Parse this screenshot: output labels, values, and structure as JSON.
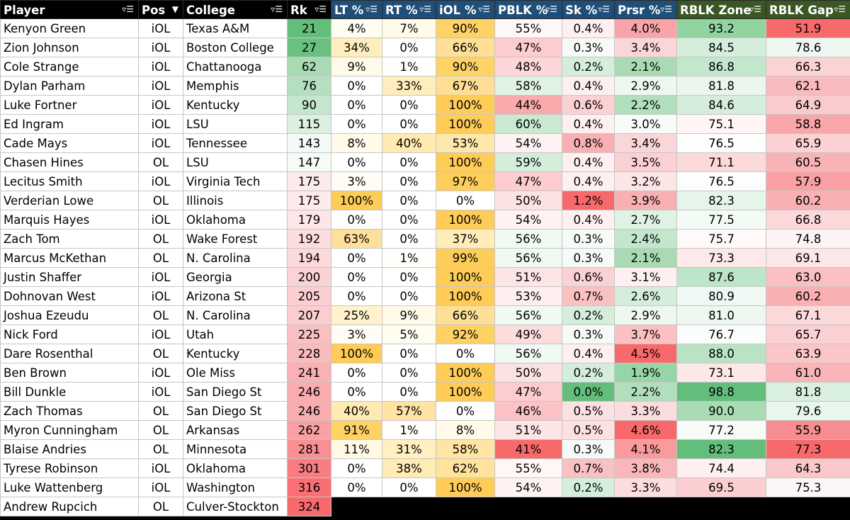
{
  "columns": [
    {
      "key": "player",
      "label": "Player",
      "width": 195,
      "align": "l",
      "bg": "#000000",
      "filter": "▿☰"
    },
    {
      "key": "pos",
      "label": "Pos",
      "width": 63,
      "align": "c",
      "bg": "#000000",
      "filter": "▼"
    },
    {
      "key": "college",
      "label": "College",
      "width": 147,
      "align": "l",
      "bg": "#000000",
      "filter": "▿☰"
    },
    {
      "key": "rk",
      "label": "Rk",
      "width": 62,
      "align": "c",
      "bg": "#000000",
      "filter": "▿☰"
    },
    {
      "key": "lt",
      "label": "LT %",
      "width": 72,
      "align": "c",
      "bg": "#1f4e78",
      "filter": "▿☰"
    },
    {
      "key": "rt",
      "label": "RT %",
      "width": 76,
      "align": "c",
      "bg": "#1f4e78",
      "filter": "▿☰"
    },
    {
      "key": "iol",
      "label": "iOL %",
      "width": 83,
      "align": "c",
      "bg": "#1f4e78",
      "filter": "▿☰"
    },
    {
      "key": "pblk",
      "label": "PBLK %",
      "width": 95,
      "align": "c",
      "bg": "#1f4e78",
      "filter": "▿☰"
    },
    {
      "key": "sk",
      "label": "Sk %",
      "width": 74,
      "align": "c",
      "bg": "#1f4e78",
      "filter": "▿☰"
    },
    {
      "key": "prsr",
      "label": "Prsr %",
      "width": 88,
      "align": "c",
      "bg": "#1f4e78",
      "filter": "▿☰"
    },
    {
      "key": "zone",
      "label": "RBLK Zone",
      "width": 126,
      "align": "c",
      "bg": "#385723",
      "filter": "▿☰"
    },
    {
      "key": "gap",
      "label": "RBLK Gap",
      "width": 119,
      "align": "c",
      "bg": "#385723",
      "filter": "▿☰"
    }
  ],
  "rows": [
    {
      "player": "Kenyon Green",
      "pos": "iOL",
      "college": "Texas A&M",
      "rk": "21",
      "lt": "4%",
      "rt": "7%",
      "iol": "90%",
      "pblk": "55%",
      "sk": "0.4%",
      "prsr": "4.0%",
      "zone": "93.2",
      "gap": "51.9",
      "colors": {
        "rk": "#63be7b",
        "lt": "#fffcf2",
        "rt": "#fffaea",
        "iol": "#fed366",
        "pblk": "#fff6f6",
        "sk": "#fef0f0",
        "prsr": "#f8a4a8",
        "zone": "#91d3a1",
        "gap": "#f8696b"
      }
    },
    {
      "player": "Zion Johnson",
      "pos": "iOL",
      "college": "Boston College",
      "rk": "27",
      "lt": "34%",
      "rt": "0%",
      "iol": "66%",
      "pblk": "47%",
      "sk": "0.3%",
      "prsr": "3.4%",
      "zone": "84.5",
      "gap": "78.6",
      "colors": {
        "rk": "#6ac17f",
        "lt": "#ffeebd",
        "rt": "#ffffff",
        "iol": "#ffdf95",
        "pblk": "#fccccf",
        "sk": "#f7fbf8",
        "prsr": "#fbd6d8",
        "zone": "#d5eedb",
        "gap": "#eef8f1"
      }
    },
    {
      "player": "Cole Strange",
      "pos": "iOL",
      "college": "Chattanooga",
      "rk": "62",
      "lt": "9%",
      "rt": "1%",
      "iol": "90%",
      "pblk": "48%",
      "sk": "0.2%",
      "prsr": "2.1%",
      "zone": "86.8",
      "gap": "66.3",
      "colors": {
        "rk": "#a8dbb3",
        "lt": "#fffae8",
        "rt": "#fffefb",
        "iol": "#fed366",
        "pblk": "#fcd6d8",
        "sk": "#d4eedb",
        "prsr": "#a8dbb3",
        "zone": "#c3e7cc",
        "gap": "#fbd3d5"
      }
    },
    {
      "player": "Dylan Parham",
      "pos": "iOL",
      "college": "Memphis",
      "rk": "76",
      "lt": "0%",
      "rt": "33%",
      "iol": "67%",
      "pblk": "58%",
      "sk": "0.4%",
      "prsr": "2.9%",
      "zone": "81.8",
      "gap": "62.1",
      "colors": {
        "rk": "#b5e0c0",
        "lt": "#ffffff",
        "rt": "#ffeebd",
        "iol": "#ffde93",
        "pblk": "#dff2e4",
        "sk": "#fef0f0",
        "prsr": "#eef8f1",
        "zone": "#eaf6ee",
        "gap": "#f9bbbe"
      }
    },
    {
      "player": "Luke Fortner",
      "pos": "iOL",
      "college": "Kentucky",
      "rk": "90",
      "lt": "0%",
      "rt": "0%",
      "iol": "100%",
      "pblk": "44%",
      "sk": "0.6%",
      "prsr": "2.2%",
      "zone": "84.6",
      "gap": "64.9",
      "colors": {
        "rk": "#c3e7cc",
        "lt": "#ffffff",
        "rt": "#ffffff",
        "iol": "#fecc57",
        "pblk": "#faa9ac",
        "sk": "#fbd2d4",
        "prsr": "#b1dfbc",
        "zone": "#d5eedb",
        "gap": "#facbcd"
      }
    },
    {
      "player": "Ed Ingram",
      "pos": "iOL",
      "college": "LSU",
      "rk": "115",
      "lt": "0%",
      "rt": "0%",
      "iol": "100%",
      "pblk": "60%",
      "sk": "0.4%",
      "prsr": "3.0%",
      "zone": "75.1",
      "gap": "58.8",
      "colors": {
        "rk": "#dbf0e1",
        "lt": "#ffffff",
        "rt": "#ffffff",
        "iol": "#fecc57",
        "pblk": "#c9e9d1",
        "sk": "#fef0f0",
        "prsr": "#f8fcf9",
        "zone": "#fff5f5",
        "gap": "#f8a6a9"
      }
    },
    {
      "player": "Cade Mays",
      "pos": "iOL",
      "college": "Tennessee",
      "rk": "143",
      "lt": "8%",
      "rt": "40%",
      "iol": "53%",
      "pblk": "54%",
      "sk": "0.8%",
      "prsr": "3.4%",
      "zone": "76.5",
      "gap": "65.9",
      "colors": {
        "rk": "#f3faf5",
        "lt": "#fffae9",
        "rt": "#ffeab2",
        "iol": "#ffe6aa",
        "pblk": "#fef2f2",
        "sk": "#f9b0b3",
        "prsr": "#fbd6d8",
        "zone": "#fcfefd",
        "gap": "#fbd1d3"
      }
    },
    {
      "player": "Chasen Hines",
      "pos": "OL",
      "college": "LSU",
      "rk": "147",
      "lt": "0%",
      "rt": "0%",
      "iol": "100%",
      "pblk": "59%",
      "sk": "0.4%",
      "prsr": "3.5%",
      "zone": "71.1",
      "gap": "60.5",
      "colors": {
        "rk": "#f6fbf8",
        "lt": "#ffffff",
        "rt": "#ffffff",
        "iol": "#fecc57",
        "pblk": "#d4eedb",
        "sk": "#fef0f0",
        "prsr": "#fbd0d2",
        "zone": "#fcd9db",
        "gap": "#f9b2b5"
      }
    },
    {
      "player": "Lecitus Smith",
      "pos": "iOL",
      "college": "Virginia Tech",
      "rk": "175",
      "lt": "3%",
      "rt": "0%",
      "iol": "97%",
      "pblk": "47%",
      "sk": "0.4%",
      "prsr": "3.2%",
      "zone": "76.5",
      "gap": "57.9",
      "colors": {
        "rk": "#fdeaeb",
        "lt": "#fffcf5",
        "rt": "#ffffff",
        "iol": "#fece5d",
        "pblk": "#fccccf",
        "sk": "#fef0f0",
        "prsr": "#fde5e6",
        "zone": "#fcfefd",
        "gap": "#f8a0a3"
      }
    },
    {
      "player": "Verderian Lowe",
      "pos": "OL",
      "college": "Illinois",
      "rk": "175",
      "lt": "100%",
      "rt": "0%",
      "iol": "0%",
      "pblk": "50%",
      "sk": "1.2%",
      "prsr": "3.9%",
      "zone": "82.3",
      "gap": "60.2",
      "colors": {
        "rk": "#fdeaeb",
        "lt": "#fecc57",
        "rt": "#ffffff",
        "iol": "#ffffff",
        "pblk": "#fde2e3",
        "sk": "#f8696b",
        "prsr": "#f9b0b3",
        "zone": "#e6f5ea",
        "gap": "#f9b0b3"
      }
    },
    {
      "player": "Marquis Hayes",
      "pos": "iOL",
      "college": "Oklahoma",
      "rk": "179",
      "lt": "0%",
      "rt": "0%",
      "iol": "100%",
      "pblk": "54%",
      "sk": "0.4%",
      "prsr": "2.7%",
      "zone": "77.5",
      "gap": "66.8",
      "colors": {
        "rk": "#fde6e7",
        "lt": "#ffffff",
        "rt": "#ffffff",
        "iol": "#fecc57",
        "pblk": "#fef2f2",
        "sk": "#fef0f0",
        "prsr": "#dff2e4",
        "zone": "#f4fbf6",
        "gap": "#fcd8da"
      }
    },
    {
      "player": "Zach Tom",
      "pos": "OL",
      "college": "Wake Forest",
      "rk": "192",
      "lt": "63%",
      "rt": "0%",
      "iol": "37%",
      "pblk": "56%",
      "sk": "0.3%",
      "prsr": "2.4%",
      "zone": "75.7",
      "gap": "74.8",
      "colors": {
        "rk": "#fcdcde",
        "lt": "#ffe09a",
        "rt": "#ffffff",
        "iol": "#ffecb8",
        "pblk": "#f1f9f3",
        "sk": "#f7fbf8",
        "prsr": "#c3e7cc",
        "zone": "#fff9f9",
        "gap": "#fcf4f4"
      }
    },
    {
      "player": "Marcus McKethan",
      "pos": "OL",
      "college": "N. Carolina",
      "rk": "194",
      "lt": "0%",
      "rt": "1%",
      "iol": "99%",
      "pblk": "56%",
      "sk": "0.3%",
      "prsr": "2.1%",
      "zone": "73.3",
      "gap": "69.1",
      "colors": {
        "rk": "#fcd9db",
        "lt": "#ffffff",
        "rt": "#fffefb",
        "iol": "#fecd59",
        "pblk": "#f1f9f3",
        "sk": "#f7fbf8",
        "prsr": "#a8dbb3",
        "zone": "#fde9ea",
        "gap": "#fde6e7"
      }
    },
    {
      "player": "Justin Shaffer",
      "pos": "iOL",
      "college": "Georgia",
      "rk": "200",
      "lt": "0%",
      "rt": "0%",
      "iol": "100%",
      "pblk": "51%",
      "sk": "0.6%",
      "prsr": "3.1%",
      "zone": "87.6",
      "gap": "63.0",
      "colors": {
        "rk": "#fbd3d5",
        "lt": "#ffffff",
        "rt": "#ffffff",
        "iol": "#fecc57",
        "pblk": "#fde4e5",
        "sk": "#fbd2d4",
        "prsr": "#fef0f0",
        "zone": "#bde5c7",
        "gap": "#fac0c2"
      }
    },
    {
      "player": "Dohnovan West",
      "pos": "iOL",
      "college": "Arizona St",
      "rk": "205",
      "lt": "0%",
      "rt": "0%",
      "iol": "100%",
      "pblk": "53%",
      "sk": "0.7%",
      "prsr": "2.6%",
      "zone": "80.9",
      "gap": "60.2",
      "colors": {
        "rk": "#fbcfd1",
        "lt": "#ffffff",
        "rt": "#ffffff",
        "iol": "#fecc57",
        "pblk": "#feeeee",
        "sk": "#fac1c3",
        "prsr": "#d5eedb",
        "zone": "#eff8f2",
        "gap": "#f9b0b3"
      }
    },
    {
      "player": "Joshua Ezeudu",
      "pos": "OL",
      "college": "N. Carolina",
      "rk": "207",
      "lt": "25%",
      "rt": "9%",
      "iol": "66%",
      "pblk": "56%",
      "sk": "0.2%",
      "prsr": "2.9%",
      "zone": "81.0",
      "gap": "67.1",
      "colors": {
        "rk": "#fbcdcf",
        "lt": "#fff2cc",
        "rt": "#fffae8",
        "iol": "#ffdf95",
        "pblk": "#f1f9f3",
        "sk": "#d4eedb",
        "prsr": "#eef8f1",
        "zone": "#eef8f1",
        "gap": "#fcdadc"
      }
    },
    {
      "player": "Nick Ford",
      "pos": "iOL",
      "college": "Utah",
      "rk": "225",
      "lt": "3%",
      "rt": "5%",
      "iol": "92%",
      "pblk": "49%",
      "sk": "0.3%",
      "prsr": "3.7%",
      "zone": "76.7",
      "gap": "65.7",
      "colors": {
        "rk": "#fabfc1",
        "lt": "#fffcf5",
        "rt": "#fffcf0",
        "iol": "#fed163",
        "pblk": "#fddcde",
        "sk": "#f7fbf8",
        "prsr": "#fac0c2",
        "zone": "#fbfdfc",
        "gap": "#fbd0d2"
      }
    },
    {
      "player": "Dare Rosenthal",
      "pos": "OL",
      "college": "Kentucky",
      "rk": "228",
      "lt": "100%",
      "rt": "0%",
      "iol": "0%",
      "pblk": "56%",
      "sk": "0.4%",
      "prsr": "4.5%",
      "zone": "88.0",
      "gap": "63.9",
      "colors": {
        "rk": "#f9bcbe",
        "lt": "#fecc57",
        "rt": "#ffffff",
        "iol": "#ffffff",
        "pblk": "#f1f9f3",
        "sk": "#fef0f0",
        "prsr": "#f8696b",
        "zone": "#b9e3c4",
        "gap": "#fac6c8"
      }
    },
    {
      "player": "Ben Brown",
      "pos": "iOL",
      "college": "Ole Miss",
      "rk": "241",
      "lt": "0%",
      "rt": "0%",
      "iol": "100%",
      "pblk": "50%",
      "sk": "0.2%",
      "prsr": "1.9%",
      "zone": "73.1",
      "gap": "61.0",
      "colors": {
        "rk": "#f9b1b4",
        "lt": "#ffffff",
        "rt": "#ffffff",
        "iol": "#fecc57",
        "pblk": "#fde2e3",
        "sk": "#d4eedb",
        "prsr": "#96d5a5",
        "zone": "#fde7e8",
        "gap": "#f9b5b8"
      }
    },
    {
      "player": "Bill Dunkle",
      "pos": "iOL",
      "college": "San Diego St",
      "rk": "246",
      "lt": "0%",
      "rt": "0%",
      "iol": "100%",
      "pblk": "47%",
      "sk": "0.0%",
      "prsr": "2.2%",
      "zone": "98.8",
      "gap": "81.8",
      "colors": {
        "rk": "#f9adb0",
        "lt": "#ffffff",
        "rt": "#ffffff",
        "iol": "#fecc57",
        "pblk": "#fccccf",
        "sk": "#63be7b",
        "prsr": "#b1dfbc",
        "zone": "#63be7b",
        "gap": "#d9f0df"
      }
    },
    {
      "player": "Zach Thomas",
      "pos": "OL",
      "college": "San Diego St",
      "rk": "246",
      "lt": "40%",
      "rt": "57%",
      "iol": "0%",
      "pblk": "46%",
      "sk": "0.5%",
      "prsr": "3.3%",
      "zone": "90.0",
      "gap": "79.6",
      "colors": {
        "rk": "#f9adb0",
        "lt": "#ffeab2",
        "rt": "#ffe3a3",
        "iol": "#ffffff",
        "pblk": "#fbc3c5",
        "sk": "#fde1e2",
        "prsr": "#fcdddf",
        "zone": "#a9dbb4",
        "gap": "#e8f6ec"
      }
    },
    {
      "player": "Myron Cunningham",
      "pos": "OL",
      "college": "Arkansas",
      "rk": "262",
      "lt": "91%",
      "rt": "1%",
      "iol": "8%",
      "pblk": "51%",
      "sk": "0.5%",
      "prsr": "4.6%",
      "zone": "77.2",
      "gap": "55.9",
      "colors": {
        "rk": "#f8a0a3",
        "lt": "#fed264",
        "rt": "#fffefb",
        "iol": "#fffae9",
        "pblk": "#fde4e5",
        "sk": "#fde1e2",
        "prsr": "#f8696b",
        "zone": "#f6fbf8",
        "gap": "#f78d90"
      }
    },
    {
      "player": "Blaise Andries",
      "pos": "OL",
      "college": "Minnesota",
      "rk": "281",
      "lt": "11%",
      "rt": "31%",
      "iol": "58%",
      "pblk": "41%",
      "sk": "0.3%",
      "prsr": "4.1%",
      "zone": "82.3",
      "gap": "77.3",
      "colors": {
        "rk": "#f88f92",
        "lt": "#fff9e5",
        "rt": "#ffefc1",
        "iol": "#ffe4a3",
        "pblk": "#f8696b",
        "sk": "#f7fbf8",
        "prsr": "#f99a9d",
        "zone": "#63be7b",
        "gap": "#f8696b"
      }
    },
    {
      "player": "Tyrese Robinson",
      "pos": "iOL",
      "college": "Oklahoma",
      "rk": "301",
      "lt": "0%",
      "rt": "38%",
      "iol": "62%",
      "pblk": "55%",
      "sk": "0.7%",
      "prsr": "3.8%",
      "zone": "74.4",
      "gap": "64.3",
      "colors": {
        "rk": "#f87d80",
        "lt": "#ffffff",
        "rt": "#ffebb5",
        "iol": "#ffe29d",
        "pblk": "#fff6f6",
        "sk": "#fac1c3",
        "prsr": "#f9b7b9",
        "zone": "#fef0f0",
        "gap": "#fac8ca"
      }
    },
    {
      "player": "Luke Wattenberg",
      "pos": "iOL",
      "college": "Washington",
      "rk": "316",
      "lt": "0%",
      "rt": "0%",
      "iol": "100%",
      "pblk": "54%",
      "sk": "0.2%",
      "prsr": "3.3%",
      "zone": "69.5",
      "gap": "75.3",
      "colors": {
        "rk": "#f87073",
        "lt": "#ffffff",
        "rt": "#ffffff",
        "iol": "#fecc57",
        "pblk": "#fef2f2",
        "sk": "#d4eedb",
        "prsr": "#fcdddf",
        "zone": "#fbcfd1",
        "gap": "#fcf7f7"
      }
    },
    {
      "player": "Andrew Rupcich",
      "pos": "OL",
      "college": "Culver-Stockton",
      "rk": "324",
      "partial": true,
      "colors": {
        "rk": "#f8696b"
      }
    }
  ]
}
